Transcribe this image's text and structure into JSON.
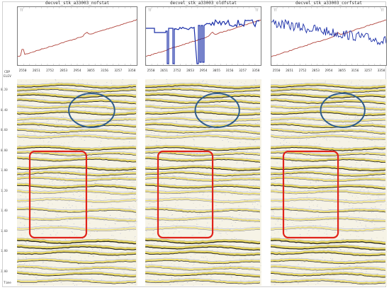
{
  "panels": [
    {
      "title": "decvel_stk_a33003_nofstat",
      "left_tag": "TT",
      "statics": "flat"
    },
    {
      "title": "decvel_stk_a33003_oldfstat",
      "left_tag": "TT",
      "right_tag": "TT",
      "statics": "blocky"
    },
    {
      "title": "decvel_stk_a33003_corfstat",
      "left_tag": "TT",
      "right_tag": "TT",
      "statics": "noisy"
    }
  ],
  "cdp_ticks": [
    "2550",
    "2651",
    "2752",
    "2853",
    "2954",
    "3055",
    "3156",
    "3257",
    "3358"
  ],
  "axis_labels": {
    "cdp": "CDP",
    "elev": "ELEV",
    "time": "Time"
  },
  "time_ticks": [
    "0.20",
    "0.40",
    "0.60",
    "0.80",
    "1.00",
    "1.20",
    "1.40",
    "1.60",
    "1.80",
    "2.00"
  ],
  "colors": {
    "elevation_curve": "#b0443c",
    "statics_curve": "#1a2ea8",
    "highlight_ellipse": "#2f5d8a",
    "highlight_rect": "#e0231a",
    "seismic_yellow": "#e8d44a",
    "seismic_black": "#111111",
    "seismic_blue": "#2b45b8"
  },
  "annotations": {
    "ellipse_label": "",
    "rect_label": ""
  }
}
